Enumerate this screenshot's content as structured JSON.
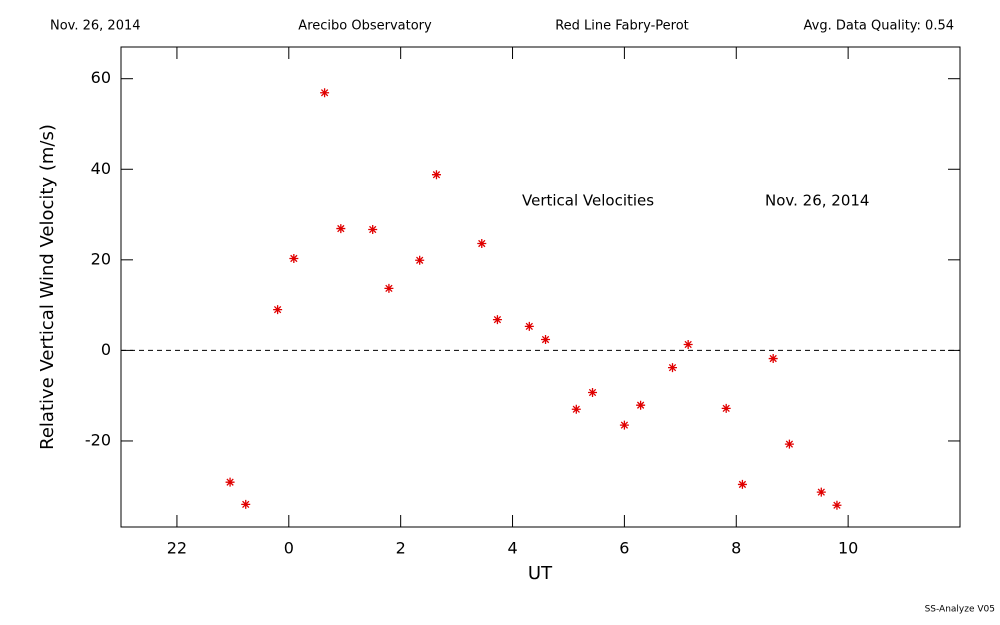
{
  "chart_data": {
    "type": "scatter",
    "header": [
      "Nov. 26, 2014",
      "Arecibo Observatory",
      "Red Line Fabry-Perot",
      "Avg. Data Quality: 0.54"
    ],
    "annotations": [
      "Vertical Velocities",
      "Nov. 26, 2014"
    ],
    "footer": "SS-Analyze V05",
    "x_label": "UT",
    "y_label": "Relative Vertical Wind Velocity (m/s)",
    "xlim": [
      -3,
      12
    ],
    "ylim": [
      -39,
      67
    ],
    "xticks": [
      {
        "value": -2,
        "label": "22"
      },
      0,
      2,
      4,
      6,
      8,
      10
    ],
    "yticks": [
      -20,
      0,
      20,
      40,
      60
    ],
    "hline": 0,
    "color": "#e00000",
    "x": [
      -1.05,
      -0.77,
      -0.2,
      0.09,
      0.64,
      0.93,
      1.5,
      1.79,
      2.34,
      2.64,
      3.45,
      3.73,
      4.3,
      4.59,
      5.14,
      5.43,
      6.0,
      6.29,
      6.86,
      7.14,
      7.82,
      8.11,
      8.66,
      8.95,
      9.52,
      9.8
    ],
    "values": [
      -29.1,
      -34.0,
      9.0,
      20.3,
      56.9,
      26.9,
      26.7,
      13.7,
      19.9,
      38.8,
      23.6,
      6.8,
      5.3,
      2.4,
      -13.0,
      -9.3,
      -16.5,
      -12.1,
      -3.8,
      1.3,
      -12.8,
      -29.6,
      -1.8,
      -20.7,
      -31.3,
      -34.2
    ]
  }
}
